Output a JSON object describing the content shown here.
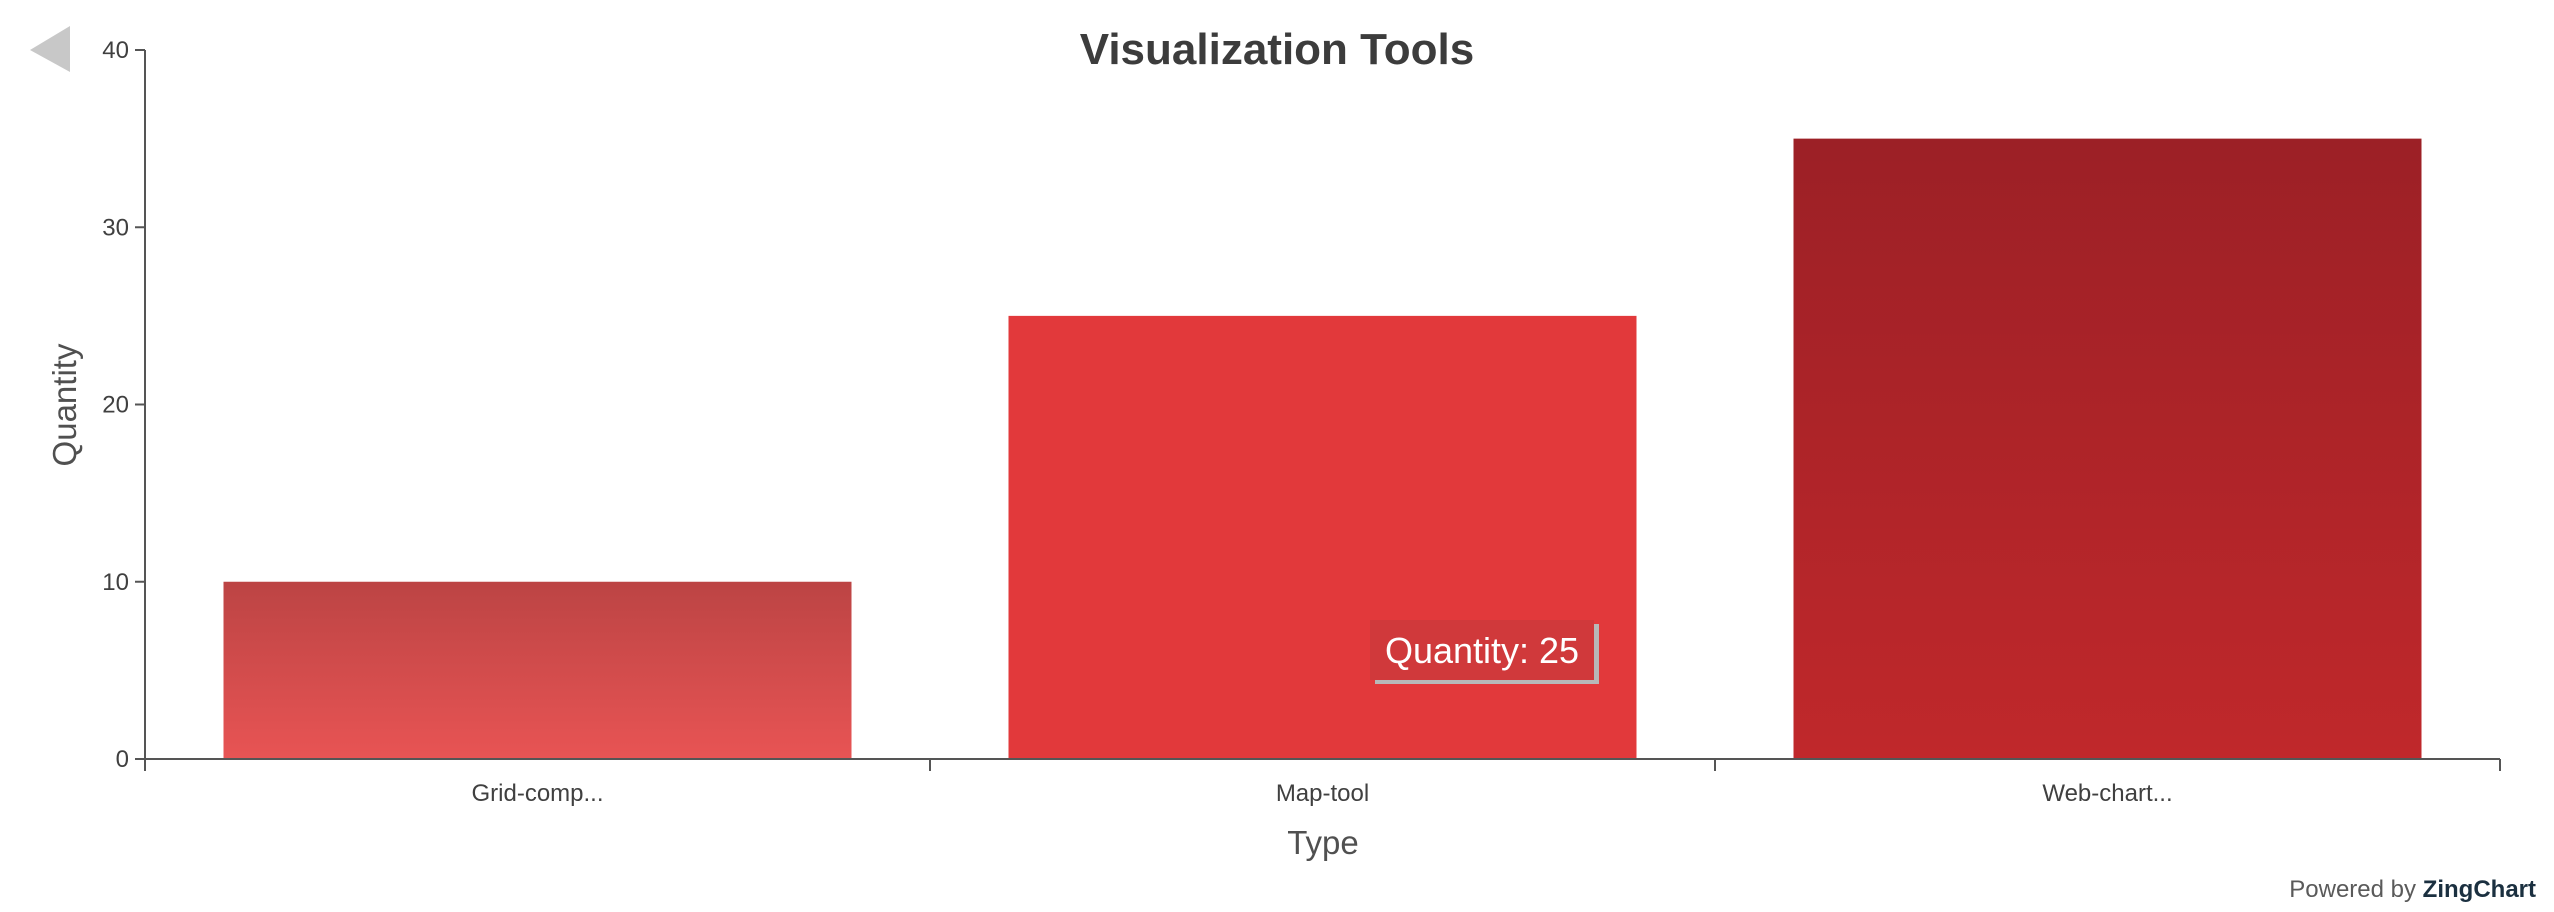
{
  "chart_data": {
    "type": "bar",
    "title": "Visualization Tools",
    "xlabel": "Type",
    "ylabel": "Quantity",
    "categories": [
      "Grid-comp...",
      "Map-tool",
      "Web-chart..."
    ],
    "values": [
      10,
      25,
      35
    ],
    "ylim": [
      0,
      40
    ],
    "yticks": [
      0,
      10,
      20,
      30,
      40
    ],
    "grid": false,
    "legend": "none"
  },
  "tooltip": {
    "label": "Quantity: 25"
  },
  "credit": {
    "prefix": "Powered by",
    "brand": "ZingChart"
  },
  "colors": {
    "bar_gradient": [
      [
        "#e85454",
        "#bc4444"
      ],
      [
        "#e2393b",
        "#e2393b"
      ],
      [
        "#c0282b",
        "#9c2026"
      ]
    ],
    "tooltip_bg": "#d0393b",
    "axis": "#555555",
    "back_arrow": "#c8c8c8"
  },
  "icons": {
    "back": "back-arrow-icon"
  }
}
